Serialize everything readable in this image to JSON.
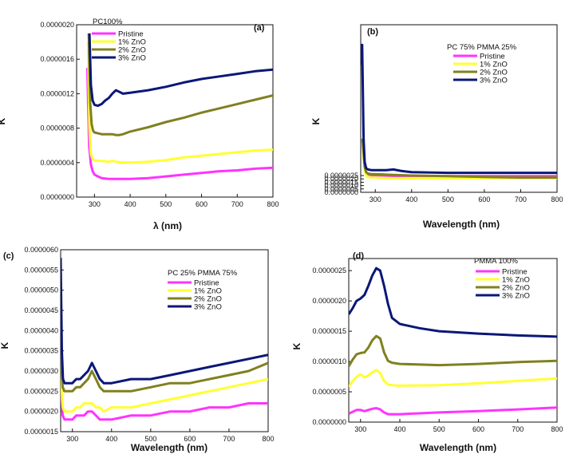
{
  "chart_data": [
    {
      "type": "line",
      "panel_label": "(a)",
      "title": "PC100%",
      "xlabel": "λ (nm)",
      "ylabel": "K",
      "xlim": [
        250,
        800
      ],
      "ylim": [
        0,
        2e-06
      ],
      "xticks": [
        "300",
        "400",
        "500",
        "600",
        "700",
        "800"
      ],
      "yticks": [
        "0.0000000",
        "0.0000004",
        "0.0000008",
        "0.0000012",
        "0.0000016",
        "0.0000020"
      ],
      "legend_position": "top-left",
      "series": [
        {
          "name": "Pristine",
          "color": "#ff33ff",
          "x": [
            280,
            285,
            290,
            295,
            300,
            310,
            320,
            340,
            360,
            380,
            400,
            450,
            500,
            550,
            600,
            650,
            700,
            750,
            800
          ],
          "y": [
            1.5e-06,
            6e-07,
            3.8e-07,
            3e-07,
            2.6e-07,
            2.4e-07,
            2.2e-07,
            2.1e-07,
            2.1e-07,
            2.1e-07,
            2.1e-07,
            2.2e-07,
            2.4e-07,
            2.6e-07,
            2.8e-07,
            3e-07,
            3.1e-07,
            3.3e-07,
            3.4e-07
          ]
        },
        {
          "name": "1% ZnO",
          "color": "#ffff33",
          "x": [
            282,
            286,
            290,
            295,
            300,
            310,
            320,
            340,
            350,
            360,
            380,
            400,
            450,
            500,
            550,
            600,
            650,
            700,
            750,
            800
          ],
          "y": [
            1.8e-06,
            8e-07,
            5e-07,
            4.4e-07,
            4.3e-07,
            4.2e-07,
            4.2e-07,
            4.1e-07,
            4.2e-07,
            4.1e-07,
            4e-07,
            4e-07,
            4.1e-07,
            4.3e-07,
            4.6e-07,
            4.8e-07,
            5e-07,
            5.2e-07,
            5.4e-07,
            5.5e-07
          ]
        },
        {
          "name": "2% ZnO",
          "color": "#808020",
          "x": [
            284,
            288,
            292,
            296,
            300,
            310,
            320,
            330,
            340,
            350,
            360,
            370,
            380,
            400,
            450,
            500,
            550,
            600,
            650,
            700,
            750,
            800
          ],
          "y": [
            1.9e-06,
            1.1e-06,
            8.5e-07,
            7.7e-07,
            7.5e-07,
            7.4e-07,
            7.3e-07,
            7.3e-07,
            7.3e-07,
            7.3e-07,
            7.2e-07,
            7.2e-07,
            7.3e-07,
            7.6e-07,
            8.1e-07,
            8.7e-07,
            9.2e-07,
            9.8e-07,
            1.03e-06,
            1.08e-06,
            1.13e-06,
            1.18e-06
          ]
        },
        {
          "name": "3% ZnO",
          "color": "#0a1778",
          "x": [
            286,
            290,
            295,
            300,
            310,
            320,
            330,
            340,
            350,
            360,
            370,
            380,
            400,
            450,
            500,
            550,
            600,
            650,
            700,
            750,
            800
          ],
          "y": [
            1.9e-06,
            1.3e-06,
            1.12e-06,
            1.07e-06,
            1.06e-06,
            1.08e-06,
            1.12e-06,
            1.15e-06,
            1.2e-06,
            1.24e-06,
            1.22e-06,
            1.2e-06,
            1.21e-06,
            1.24e-06,
            1.28e-06,
            1.33e-06,
            1.37e-06,
            1.4e-06,
            1.43e-06,
            1.46e-06,
            1.48e-06
          ]
        }
      ]
    },
    {
      "type": "line",
      "panel_label": "(b)",
      "title": "PC 75% PMMA 25%",
      "xlabel": "Wavelength (nm)",
      "ylabel": "K",
      "xlim": [
        260,
        800
      ],
      "ylim": [
        0,
        2.5e-05
      ],
      "xticks": [
        "300",
        "400",
        "500",
        "600",
        "700",
        "800"
      ],
      "yticks": [
        "0.0000000",
        "0.0000005",
        "0.0000010",
        "0.0000015",
        "0.0000020",
        "0.0000025"
      ],
      "legend_position": "top-right",
      "series": [
        {
          "name": "Pristine",
          "color": "#ff33ff",
          "x": [
            265,
            268,
            271,
            275,
            280,
            290,
            300,
            350,
            400,
            500,
            600,
            700,
            800
          ],
          "y": [
            7.8e-06,
            5.5e-06,
            3.5e-06,
            2.8e-06,
            2.6e-06,
            2.5e-06,
            2.5e-06,
            2.4e-06,
            2.4e-06,
            2.4e-06,
            2.4e-06,
            2.4e-06,
            2.4e-06
          ]
        },
        {
          "name": "1% ZnO",
          "color": "#ffff33",
          "x": [
            265,
            268,
            271,
            275,
            280,
            290,
            300,
            350,
            400,
            500,
            600,
            700,
            800
          ],
          "y": [
            7.5e-06,
            5.2e-06,
            3.2e-06,
            2.5e-06,
            2.3e-06,
            2.2e-06,
            2.2e-06,
            2.1e-06,
            2.1e-06,
            2.1e-06,
            2.1e-06,
            2.1e-06,
            2.1e-06
          ]
        },
        {
          "name": "2% ZnO",
          "color": "#808020",
          "x": [
            265,
            268,
            271,
            275,
            280,
            290,
            300,
            350,
            400,
            500,
            600,
            700,
            800
          ],
          "y": [
            8e-06,
            5.8e-06,
            3.8e-06,
            3e-06,
            2.8e-06,
            2.7e-06,
            2.7e-06,
            2.6e-06,
            2.5e-06,
            2.4e-06,
            2.3e-06,
            2.2e-06,
            2.2e-06
          ]
        },
        {
          "name": "3% ZnO",
          "color": "#0a1778",
          "x": [
            262,
            264,
            266,
            268,
            271,
            275,
            280,
            290,
            300,
            330,
            350,
            370,
            400,
            500,
            600,
            700,
            800
          ],
          "y": [
            1.9e-05,
            2.2e-05,
            1.5e-05,
            8e-06,
            4.5e-06,
            3.6e-06,
            3.4e-06,
            3.3e-06,
            3.3e-06,
            3.3e-06,
            3.4e-06,
            3.2e-06,
            3e-06,
            2.9e-06,
            2.9e-06,
            2.9e-06,
            2.9e-06
          ]
        }
      ]
    },
    {
      "type": "line",
      "panel_label": "(c)",
      "title": "PC 25% PMMA 75%",
      "xlabel": "Wavelength (nm)",
      "ylabel": "K",
      "xlim": [
        270,
        800
      ],
      "ylim": [
        1.5e-06,
        6e-06
      ],
      "xticks": [
        "300",
        "400",
        "500",
        "600",
        "700",
        "800"
      ],
      "yticks": [
        "0.0000015",
        "0.0000020",
        "0.0000025",
        "0.0000030",
        "0.0000035",
        "0.0000040",
        "0.0000045",
        "0.0000050",
        "0.0000055",
        "0.0000060"
      ],
      "legend_position": "top-right",
      "series": [
        {
          "name": "Pristine",
          "color": "#ff33ff",
          "x": [
            270,
            272,
            275,
            280,
            290,
            300,
            310,
            320,
            330,
            340,
            350,
            360,
            370,
            380,
            400,
            450,
            500,
            550,
            600,
            650,
            700,
            750,
            800
          ],
          "y": [
            3.5e-06,
            2.5e-06,
            1.9e-06,
            1.8e-06,
            1.8e-06,
            1.8e-06,
            1.9e-06,
            1.9e-06,
            1.9e-06,
            2e-06,
            2e-06,
            1.9e-06,
            1.8e-06,
            1.8e-06,
            1.8e-06,
            1.9e-06,
            1.9e-06,
            2e-06,
            2e-06,
            2.1e-06,
            2.1e-06,
            2.2e-06,
            2.2e-06
          ]
        },
        {
          "name": "1% ZnO",
          "color": "#ffff33",
          "x": [
            270,
            272,
            275,
            280,
            290,
            300,
            310,
            320,
            330,
            340,
            350,
            360,
            370,
            380,
            400,
            450,
            500,
            550,
            600,
            650,
            700,
            750,
            800
          ],
          "y": [
            3.7e-06,
            2.7e-06,
            2.1e-06,
            2e-06,
            2e-06,
            2e-06,
            2.1e-06,
            2.1e-06,
            2.2e-06,
            2.2e-06,
            2.2e-06,
            2.1e-06,
            2.1e-06,
            2e-06,
            2.1e-06,
            2.1e-06,
            2.2e-06,
            2.3e-06,
            2.4e-06,
            2.5e-06,
            2.6e-06,
            2.7e-06,
            2.8e-06
          ]
        },
        {
          "name": "2% ZnO",
          "color": "#808020",
          "x": [
            270,
            272,
            275,
            280,
            290,
            300,
            310,
            320,
            330,
            340,
            350,
            360,
            370,
            380,
            400,
            450,
            500,
            550,
            600,
            650,
            700,
            750,
            800
          ],
          "y": [
            4e-06,
            3.1e-06,
            2.6e-06,
            2.5e-06,
            2.5e-06,
            2.5e-06,
            2.6e-06,
            2.6e-06,
            2.7e-06,
            2.8e-06,
            3e-06,
            2.8e-06,
            2.6e-06,
            2.5e-06,
            2.5e-06,
            2.5e-06,
            2.6e-06,
            2.7e-06,
            2.7e-06,
            2.8e-06,
            2.9e-06,
            3e-06,
            3.2e-06
          ]
        },
        {
          "name": "3% ZnO",
          "color": "#0a1778",
          "x": [
            270,
            271,
            273,
            276,
            280,
            290,
            300,
            310,
            320,
            330,
            340,
            350,
            360,
            370,
            380,
            400,
            450,
            500,
            550,
            600,
            650,
            700,
            750,
            800
          ],
          "y": [
            5.8e-06,
            5e-06,
            3.5e-06,
            2.8e-06,
            2.7e-06,
            2.7e-06,
            2.7e-06,
            2.8e-06,
            2.8e-06,
            2.9e-06,
            3e-06,
            3.2e-06,
            3e-06,
            2.8e-06,
            2.7e-06,
            2.7e-06,
            2.8e-06,
            2.8e-06,
            2.9e-06,
            3e-06,
            3.1e-06,
            3.2e-06,
            3.3e-06,
            3.4e-06
          ]
        }
      ]
    },
    {
      "type": "line",
      "panel_label": "(d)",
      "title": "PMMA 100%",
      "xlabel": "Wavelength (nm)",
      "ylabel": "K",
      "xlim": [
        270,
        800
      ],
      "ylim": [
        0,
        2.7e-06
      ],
      "xticks": [
        "300",
        "400",
        "500",
        "600",
        "700",
        "800"
      ],
      "yticks": [
        "0.0000000",
        "0.0000005",
        "0.0000010",
        "0.0000015",
        "0.0000020",
        "0.0000025"
      ],
      "legend_position": "top-right",
      "series": [
        {
          "name": "Pristine",
          "color": "#ff33ff",
          "x": [
            270,
            280,
            290,
            300,
            310,
            320,
            330,
            340,
            350,
            360,
            370,
            380,
            400,
            500,
            600,
            700,
            800
          ],
          "y": [
            1.4e-07,
            1.7e-07,
            2e-07,
            2e-07,
            1.8e-07,
            2e-07,
            2.2e-07,
            2.3e-07,
            2.1e-07,
            1.6e-07,
            1.3e-07,
            1.3e-07,
            1.3e-07,
            1.6e-07,
            1.8e-07,
            2.1e-07,
            2.4e-07
          ]
        },
        {
          "name": "1% ZnO",
          "color": "#ffff33",
          "x": [
            270,
            280,
            290,
            300,
            310,
            320,
            330,
            340,
            350,
            360,
            370,
            380,
            400,
            500,
            600,
            700,
            800
          ],
          "y": [
            5.8e-07,
            6.8e-07,
            7.5e-07,
            7.9e-07,
            7.4e-07,
            7.7e-07,
            8.2e-07,
            8.6e-07,
            8.1e-07,
            6.8e-07,
            6.2e-07,
            6.1e-07,
            6e-07,
            6.1e-07,
            6.4e-07,
            6.8e-07,
            7.2e-07
          ]
        },
        {
          "name": "2% ZnO",
          "color": "#808020",
          "x": [
            270,
            280,
            290,
            300,
            310,
            320,
            330,
            340,
            350,
            360,
            370,
            380,
            400,
            500,
            600,
            700,
            800
          ],
          "y": [
            9.2e-07,
            1.03e-06,
            1.12e-06,
            1.14e-06,
            1.15e-06,
            1.23e-06,
            1.35e-06,
            1.42e-06,
            1.38e-06,
            1.15e-06,
            1.01e-06,
            9.8e-07,
            9.6e-07,
            9.4e-07,
            9.6e-07,
            9.9e-07,
            1.01e-06
          ]
        },
        {
          "name": "3% ZnO",
          "color": "#0a1778",
          "x": [
            270,
            280,
            290,
            300,
            310,
            320,
            330,
            340,
            350,
            360,
            370,
            380,
            400,
            450,
            500,
            600,
            700,
            800
          ],
          "y": [
            1.78e-06,
            1.88e-06,
            2e-06,
            2.04e-06,
            2.1e-06,
            2.25e-06,
            2.42e-06,
            2.54e-06,
            2.5e-06,
            2.25e-06,
            1.95e-06,
            1.72e-06,
            1.62e-06,
            1.55e-06,
            1.5e-06,
            1.46e-06,
            1.43e-06,
            1.41e-06
          ]
        }
      ]
    }
  ]
}
